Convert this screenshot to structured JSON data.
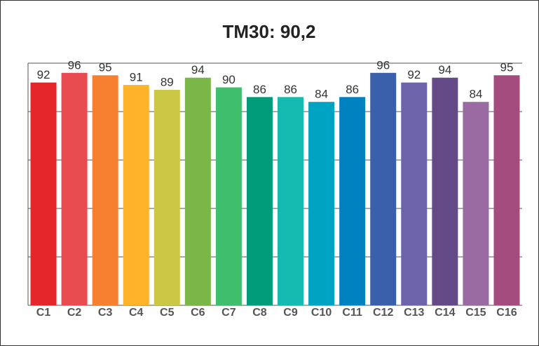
{
  "chart_data": {
    "type": "bar",
    "title": "TM30: 90,2",
    "categories": [
      "C1",
      "C2",
      "C3",
      "C4",
      "C5",
      "C6",
      "C7",
      "C8",
      "C9",
      "C10",
      "C11",
      "C12",
      "C13",
      "C14",
      "C15",
      "C16"
    ],
    "values": [
      92,
      96,
      95,
      91,
      89,
      94,
      90,
      86,
      86,
      84,
      86,
      96,
      92,
      94,
      84,
      95
    ],
    "colors": [
      "#e4262b",
      "#e84b50",
      "#f78030",
      "#fdb22a",
      "#cbc846",
      "#7ab648",
      "#3fbe6e",
      "#009c79",
      "#15bbb0",
      "#00a3c1",
      "#0081c0",
      "#3a5fab",
      "#6c63ab",
      "#644a86",
      "#9a6aa3",
      "#a44c7e"
    ],
    "ylim": [
      0,
      100
    ],
    "yticks": [
      0,
      20,
      40,
      60,
      80,
      100
    ],
    "grid": true
  }
}
